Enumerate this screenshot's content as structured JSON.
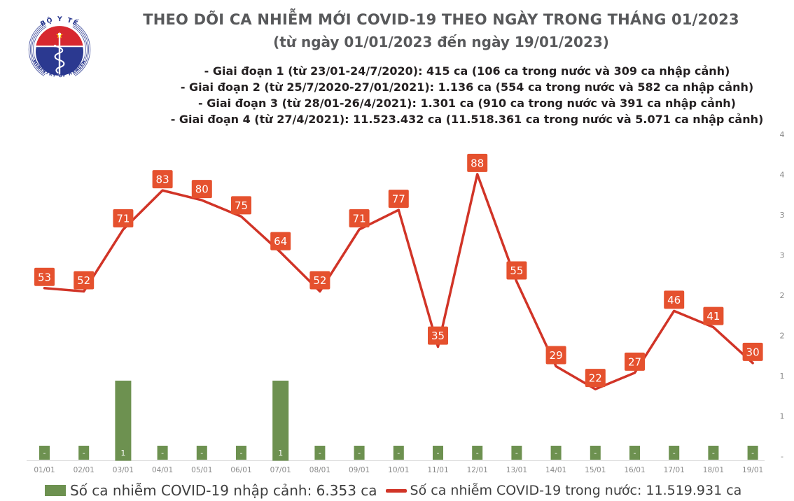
{
  "logo": {
    "top_text": "BỘ Y TẾ",
    "bottom_text": "MINISTRY OF HEALTH",
    "navy": "#2b3990",
    "red": "#d7282f",
    "star": "#ffd400"
  },
  "header": {
    "title_line1": "THEO DÕI CA NHIỄM MỚI COVID-19 THEO NGÀY TRONG THÁNG 01/2023",
    "title_line2": "(từ ngày 01/01/2023 đến ngày 19/01/2023)",
    "phases": [
      "- Giai đoạn 1 (từ 23/01-24/7/2020): 415 ca (106 ca trong nước và 309 ca nhập cảnh)",
      "- Giai đoạn 2 (từ 25/7/2020-27/01/2021): 1.136 ca (554 ca trong nước và 582 ca nhập cảnh)",
      "- Giai đoạn 3 (từ 28/01-26/4/2021): 1.301 ca (910 ca trong nước và 391 ca nhập cảnh)",
      "- Giai đoạn 4 (từ 27/4/2021): 11.523.432 ca (11.518.361 ca trong nước và 5.071 ca nhập cảnh)"
    ]
  },
  "chart_data": {
    "type": "combo",
    "title": "THEO DÕI CA NHIỄM MỚI COVID-19 THEO NGÀY TRONG THÁNG 01/2023 (từ ngày 01/01/2023 đến ngày 19/01/2023)",
    "categories": [
      "01/01",
      "02/01",
      "03/01",
      "04/01",
      "05/01",
      "06/01",
      "07/01",
      "08/01",
      "09/01",
      "10/01",
      "11/01",
      "12/01",
      "13/01",
      "14/01",
      "15/01",
      "16/01",
      "17/01",
      "18/01",
      "19/01"
    ],
    "series": [
      {
        "name": "Số ca nhiễm COVID-19 nhập cảnh",
        "type": "bar",
        "color": "#6d9150",
        "values": [
          0,
          0,
          1,
          0,
          0,
          0,
          1,
          0,
          0,
          0,
          0,
          0,
          0,
          0,
          0,
          0,
          0,
          0,
          0
        ],
        "data_labels": [
          "-",
          "-",
          "1",
          "-",
          "-",
          "-",
          "1",
          "-",
          "-",
          "-",
          "-",
          "-",
          "-",
          "-",
          "-",
          "-",
          "-",
          "-",
          "-"
        ],
        "total_label": "Số ca nhiễm COVID-19 nhập cảnh: 6.353 ca"
      },
      {
        "name": "Số ca nhiễm COVID-19 trong nước",
        "type": "line",
        "color": "#d13427",
        "label_bg": "#e5512e",
        "values": [
          53,
          52,
          71,
          83,
          80,
          75,
          64,
          52,
          71,
          77,
          35,
          88,
          55,
          29,
          22,
          27,
          46,
          41,
          30
        ],
        "total_label": "Số ca nhiễm COVID-19 trong nước: 11.519.931 ca"
      }
    ],
    "right_axis": {
      "labels": [
        "4",
        "4",
        "3",
        "3",
        "2",
        "2",
        "1",
        "1",
        "-"
      ]
    },
    "xlabel": "",
    "ylabel": "",
    "grid": false,
    "legend_position": "bottom",
    "tick_color": "#898989",
    "axis_line_color": "#d6d6d6"
  }
}
